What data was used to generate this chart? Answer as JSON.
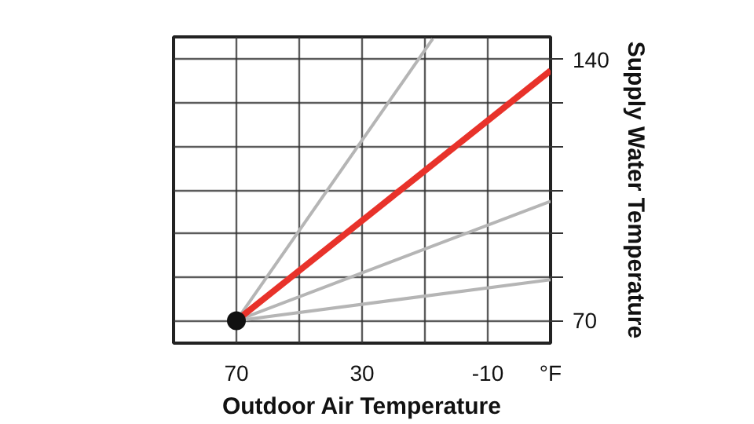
{
  "chart_data": {
    "type": "line",
    "xlabel": "Outdoor Air Temperature",
    "ylabel": "Supply Water Temperature",
    "annotations": [
      "°F"
    ],
    "xlim": [
      90,
      -30
    ],
    "ylim": [
      64,
      146
    ],
    "xticks": [
      70,
      {
        "value": 50,
        "label": null
      },
      30,
      {
        "value": 10,
        "label": null
      },
      -10
    ],
    "yticks": [
      70,
      {
        "value": 81.7,
        "label": null
      },
      {
        "value": 93.3,
        "label": null
      },
      {
        "value": 105,
        "label": null
      },
      {
        "value": 116.7,
        "label": null
      },
      {
        "value": 128.3,
        "label": null
      },
      140
    ],
    "grid": true,
    "marker": "none",
    "line_style": "solid",
    "series": [
      {
        "color": "#b5b5b5",
        "x": [
          70,
          7.5
        ],
        "values": [
          70,
          145.5
        ]
      },
      {
        "color": "#b5b5b5",
        "x": [
          70,
          -30
        ],
        "values": [
          70,
          102
        ]
      },
      {
        "color": "#b5b5b5",
        "x": [
          70,
          -30
        ],
        "values": [
          70,
          81
        ]
      },
      {
        "color": "#e8322a",
        "x": [
          70,
          -30
        ],
        "values": [
          70,
          137
        ]
      },
      {
        "type": "scatter",
        "marker": "circle",
        "color": "#111111",
        "x": [
          70
        ],
        "values": [
          70
        ]
      }
    ]
  }
}
